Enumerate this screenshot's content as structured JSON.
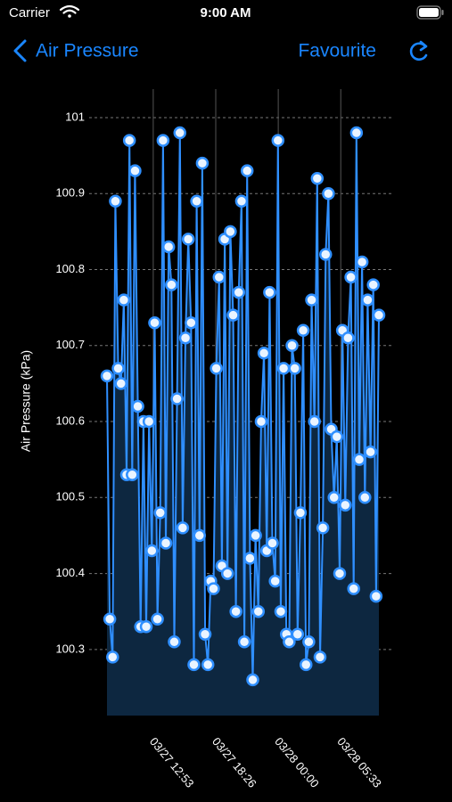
{
  "status_bar": {
    "carrier": "Carrier",
    "time": "9:00 AM"
  },
  "nav": {
    "back": "Air Pressure",
    "action": "Favourite"
  },
  "chart_data": {
    "type": "line",
    "ylabel": "Air Pressure (kPa)",
    "values": [
      100.66,
      100.34,
      100.29,
      100.89,
      100.67,
      100.65,
      100.76,
      100.53,
      100.97,
      100.53,
      100.93,
      100.62,
      100.33,
      100.6,
      100.33,
      100.6,
      100.43,
      100.73,
      100.34,
      100.48,
      100.97,
      100.44,
      100.83,
      100.78,
      100.31,
      100.63,
      100.98,
      100.46,
      100.71,
      100.84,
      100.73,
      100.28,
      100.89,
      100.45,
      100.94,
      100.32,
      100.28,
      100.39,
      100.38,
      100.67,
      100.79,
      100.41,
      100.84,
      100.4,
      100.85,
      100.74,
      100.35,
      100.77,
      100.89,
      100.31,
      100.93,
      100.42,
      100.26,
      100.45,
      100.35,
      100.6,
      100.69,
      100.43,
      100.77,
      100.44,
      100.39,
      100.97,
      100.35,
      100.67,
      100.32,
      100.31,
      100.7,
      100.67,
      100.32,
      100.48,
      100.72,
      100.28,
      100.31,
      100.76,
      100.6,
      100.92,
      100.29,
      100.46,
      100.82,
      100.9,
      100.59,
      100.5,
      100.58,
      100.4,
      100.72,
      100.49,
      100.71,
      100.79,
      100.38,
      100.98,
      100.55,
      100.81,
      100.5,
      100.76,
      100.56,
      100.78,
      100.37,
      100.74
    ],
    "color": "#2f8fff",
    "fill": "#0d2740",
    "xlim": [
      0,
      97
    ],
    "xticks": [
      {
        "value": 16.5,
        "label": "03/27 12:53"
      },
      {
        "value": 38.8,
        "label": "03/27 18:26"
      },
      {
        "value": 61.1,
        "label": "03/28 00:00"
      },
      {
        "value": 83.4,
        "label": "03/28 05:33"
      }
    ],
    "ylim": [
      100.213,
      101
    ],
    "yticks": [
      100.3,
      100.4,
      100.5,
      100.6,
      100.7,
      100.8,
      100.9,
      101
    ],
    "grid": true
  }
}
